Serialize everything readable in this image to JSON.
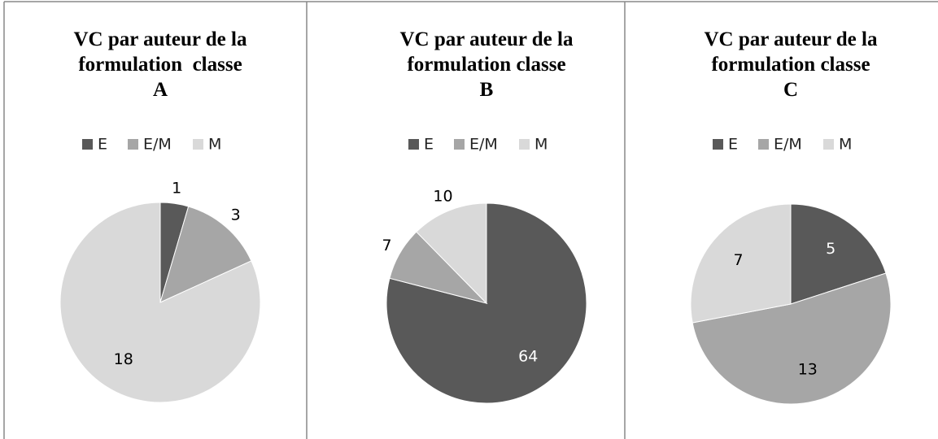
{
  "chart_data": [
    {
      "type": "pie",
      "title": [
        "VC par auteur de la",
        "formulation  classe",
        "A"
      ],
      "categories": [
        "E",
        "E/M",
        "M"
      ],
      "colors": [
        "#595959",
        "#a6a6a6",
        "#d9d9d9"
      ],
      "values": [
        1,
        3,
        18
      ]
    },
    {
      "type": "pie",
      "title": [
        "VC par auteur de la",
        "formulation classe",
        "B"
      ],
      "categories": [
        "E",
        "E/M",
        "M"
      ],
      "colors": [
        "#595959",
        "#a6a6a6",
        "#d9d9d9"
      ],
      "values": [
        64,
        7,
        10
      ]
    },
    {
      "type": "pie",
      "title": [
        "VC par auteur de la",
        "formulation classe",
        "C"
      ],
      "categories": [
        "E",
        "E/M",
        "M"
      ],
      "colors": [
        "#595959",
        "#a6a6a6",
        "#d9d9d9"
      ],
      "values": [
        5,
        13,
        7
      ]
    }
  ]
}
